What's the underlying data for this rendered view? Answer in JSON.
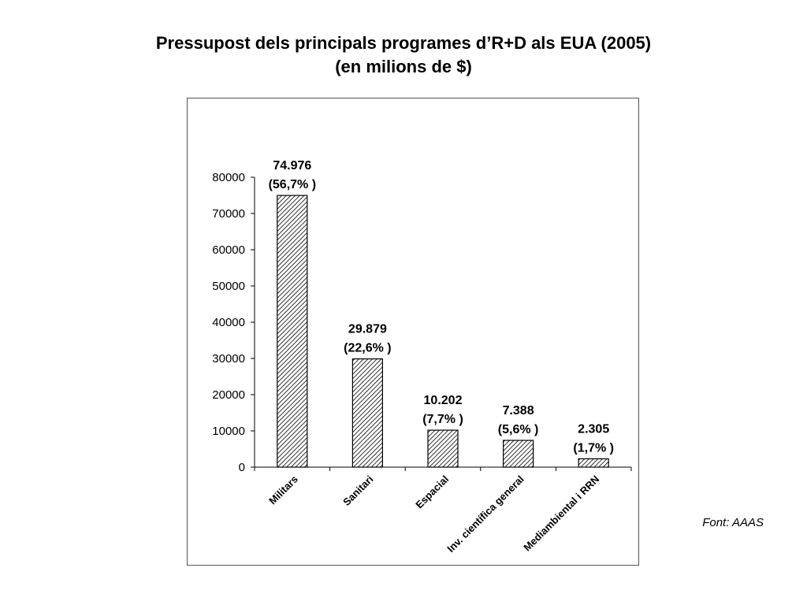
{
  "title": {
    "line1": "Pressupost dels principals programes d’R+D als EUA (2005)",
    "line2": "(en milions de $)"
  },
  "source_note": "Font: AAAS",
  "chart_data": {
    "type": "bar",
    "title": "Pressupost dels principals programes d’R+D als EUA (2005) (en milions de $)",
    "xlabel": "",
    "ylabel": "",
    "categories": [
      "Militars",
      "Sanitari",
      "Espacial",
      "Inv. científica general",
      "Mediambiental i RRN"
    ],
    "values": [
      74976,
      29879,
      10202,
      7388,
      2305
    ],
    "value_labels": [
      "74.976",
      "29.879",
      "10.202",
      "7.388",
      "2.305"
    ],
    "percent_labels": [
      "(56,7% )",
      "(22,6% )",
      "(7,7% )",
      "(5,6% )",
      "(1,7% )"
    ],
    "ylim": [
      0,
      80000
    ],
    "yticks": [
      0,
      10000,
      20000,
      30000,
      40000,
      50000,
      60000,
      70000,
      80000
    ],
    "grid": false,
    "legend": "none",
    "bar_fill": "hatched"
  }
}
